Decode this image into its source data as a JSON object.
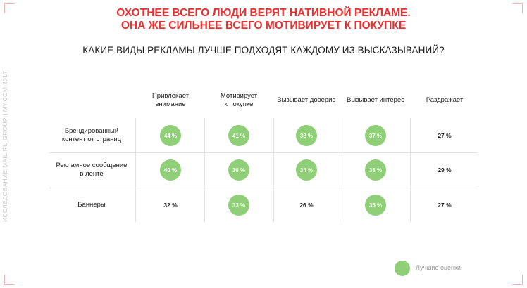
{
  "headline": {
    "line1": "ОХОТНЕЕ ВСЕГО ЛЮДИ ВЕРЯТ НАТИВНОЙ РЕКЛАМЕ.",
    "line2": "ОНА ЖЕ СИЛЬНЕЕ ВСЕГО МОТИВИРУЕТ К ПОКУПКЕ"
  },
  "question": "КАКИЕ ВИДЫ РЕКЛАМЫ ЛУЧШЕ ПОДХОДЯТ КАЖДОМУ ИЗ ВЫСКАЗЫВАНИЙ?",
  "side_note": "ИССЛЕДОВАНИЕ MAIL.RU GROUP I MY.COM 2017",
  "legend": {
    "label": "Лучшие оценки",
    "color": "#8fcf78"
  },
  "colors": {
    "headline": "#ee2e2e",
    "best": "#8fcf78",
    "grid": "#e2e2e2"
  },
  "chart_data": {
    "type": "table",
    "columns": [
      [
        "Привлекает",
        "внимание"
      ],
      [
        "Мотивирует",
        "к покупке"
      ],
      [
        "Вызывает доверие"
      ],
      [
        "Вызывает интерес"
      ],
      [
        "Раздражает"
      ]
    ],
    "rows": [
      {
        "label": [
          "Брендированный",
          "контент от страниц"
        ],
        "values": [
          "44 %",
          "41 %",
          "38 %",
          "37 %",
          "27 %"
        ],
        "best": [
          true,
          true,
          true,
          true,
          false
        ]
      },
      {
        "label": [
          "Рекламное сообщение",
          "в ленте"
        ],
        "values": [
          "40 %",
          "36 %",
          "34 %",
          "33 %",
          "29 %"
        ],
        "best": [
          true,
          true,
          true,
          true,
          false
        ]
      },
      {
        "label": [
          "Баннеры"
        ],
        "values": [
          "32 %",
          "33 %",
          "26 %",
          "35 %",
          "27 %"
        ],
        "best": [
          false,
          true,
          false,
          true,
          false
        ]
      }
    ]
  }
}
